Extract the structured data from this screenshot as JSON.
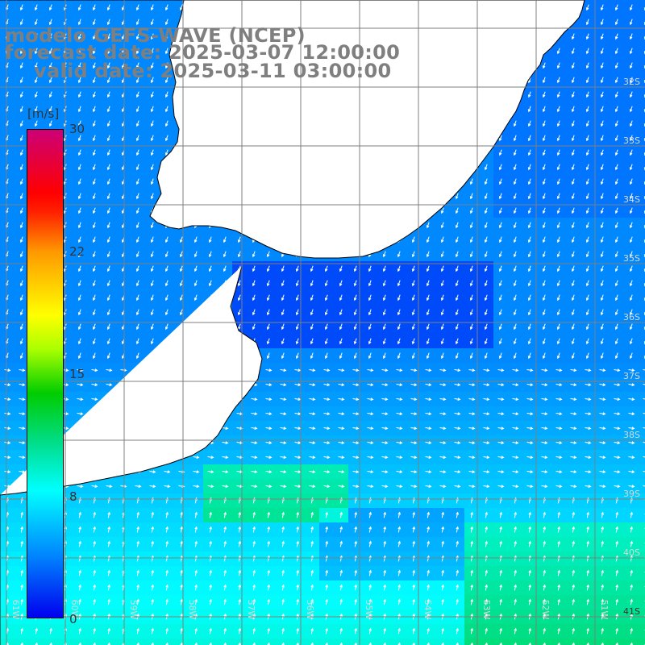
{
  "title": {
    "model": "modelo GEFS-WAVE (NCEP)",
    "forecast": "forecast date: 2025-03-07 12:00:00",
    "valid": "valid date: 2025-03-11 03:00:00"
  },
  "colorbar": {
    "unit": "[m/s]",
    "ticks": [
      "30",
      "22",
      "15",
      "8",
      "0"
    ],
    "min": 0,
    "max": 30,
    "colors": [
      "#0000ee",
      "#0088ff",
      "#00ffff",
      "#00cc00",
      "#ffff00",
      "#ff9900",
      "#ff0000",
      "#cc0077"
    ]
  },
  "map": {
    "lat_labels": [
      "32S",
      "33S",
      "34S",
      "35S",
      "36S",
      "37S",
      "38S",
      "39S",
      "40S",
      "41S"
    ],
    "lon_labels": [
      "61W",
      "60W",
      "59W",
      "58W",
      "57W",
      "56W",
      "55W",
      "54W",
      "53W",
      "52W",
      "51W"
    ],
    "land_color": "#ffffff",
    "coastline_color": "#000000",
    "grid_color": "#7f7f7f",
    "arrow_color": "#ffffff"
  }
}
